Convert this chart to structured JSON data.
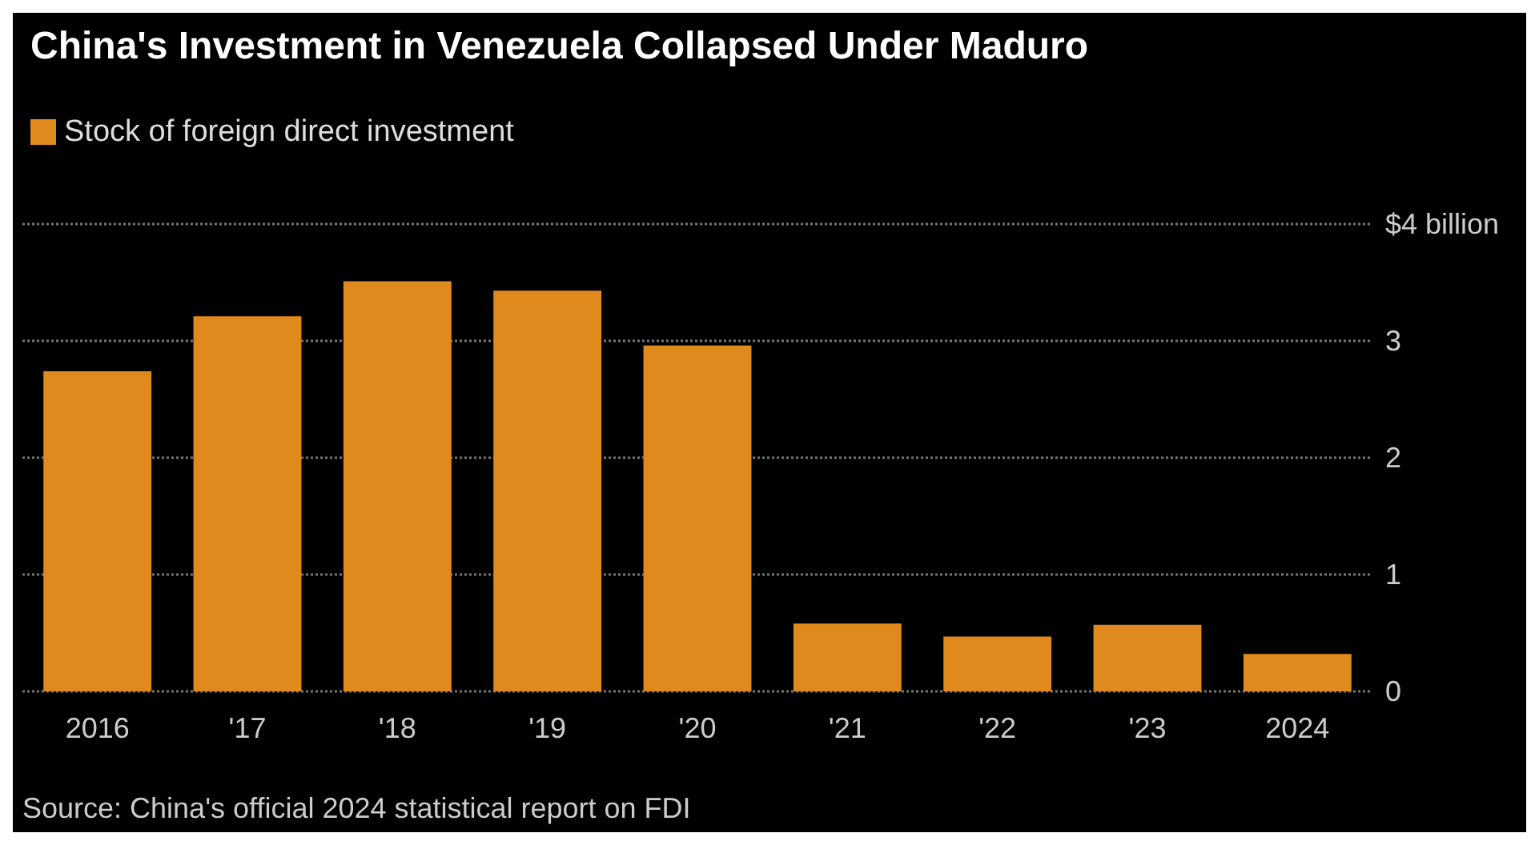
{
  "chart_data": {
    "type": "bar",
    "title": "China's Investment in Venezuela Collapsed Under Maduro",
    "categories": [
      "2016",
      "'17",
      "'18",
      "'19",
      "'20",
      "'21",
      "'22",
      "'23",
      "2024"
    ],
    "series": [
      {
        "name": "Stock of foreign direct investment",
        "color": "#e08a1e",
        "values": [
          2.74,
          3.21,
          3.51,
          3.43,
          2.96,
          0.58,
          0.47,
          0.57,
          0.32
        ]
      }
    ],
    "ylim": [
      0,
      4
    ],
    "yticks": [
      0,
      1,
      2,
      3,
      {
        "value": 4,
        "label": "$4 billion"
      }
    ],
    "grid": "y",
    "legend": "top left",
    "annotations": [
      "Source: China's official 2024 statistical report on FDI"
    ]
  }
}
